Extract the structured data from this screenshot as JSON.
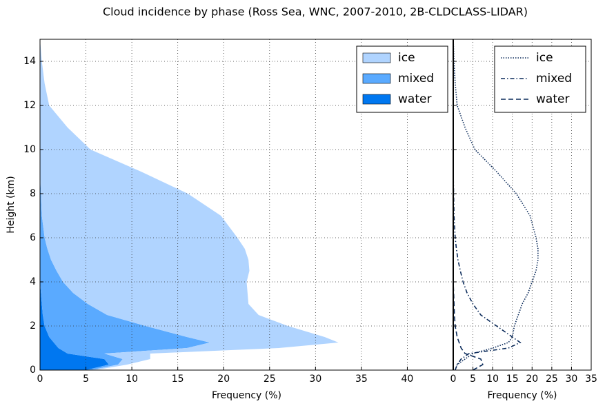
{
  "title": "Cloud incidence by phase (Ross Sea, WNC, 2007-2010, 2B-CLDCLASS-LIDAR)",
  "chart_data": [
    {
      "type": "stacked-area-horizontal",
      "ylabel": "Height (km)",
      "xlabel": "Frequency (%)",
      "xlim": [
        0,
        45
      ],
      "xticks": [
        0,
        5,
        10,
        15,
        20,
        25,
        30,
        35,
        40
      ],
      "ylim": [
        0,
        15
      ],
      "yticks": [
        0,
        2,
        4,
        6,
        8,
        10,
        12,
        14
      ],
      "grid": true,
      "legend": "upper right",
      "y": [
        0,
        0.25,
        0.5,
        0.75,
        1,
        1.25,
        1.5,
        2,
        2.5,
        3,
        3.5,
        4,
        4.5,
        5,
        5.5,
        6,
        7,
        8,
        9,
        10,
        11,
        12,
        13,
        14,
        15
      ],
      "series": [
        {
          "name": "ice",
          "color": "#b0d4ff",
          "values": [
            0.5,
            1,
            3,
            5,
            10,
            14,
            15,
            15.5,
            16.5,
            17.5,
            19,
            20,
            21,
            21.5,
            21.5,
            21,
            19.5,
            16,
            11,
            5.5,
            3,
            1,
            0.5,
            0.2,
            0
          ]
        },
        {
          "name": "mixed",
          "color": "#5aaaff",
          "values": [
            0.5,
            1,
            2,
            4,
            14,
            17,
            15,
            11,
            7,
            5,
            3.5,
            2.5,
            1.8,
            1.2,
            0.8,
            0.5,
            0.2,
            0.1,
            0,
            0,
            0,
            0,
            0,
            0,
            0
          ]
        },
        {
          "name": "water",
          "color": "#0077f0",
          "values": [
            5,
            7.5,
            7,
            3,
            2,
            1.5,
            1,
            0.5,
            0.3,
            0.2,
            0.1,
            0,
            0,
            0,
            0,
            0,
            0,
            0,
            0,
            0,
            0,
            0,
            0,
            0,
            0
          ]
        }
      ]
    },
    {
      "type": "line-horizontal",
      "xlabel": "Frequency (%)",
      "xlim": [
        0,
        35
      ],
      "xticks": [
        0,
        5,
        10,
        15,
        20,
        25,
        30,
        35
      ],
      "ylim": [
        0,
        15
      ],
      "yticks": [
        0,
        2,
        4,
        6,
        8,
        10,
        12,
        14
      ],
      "grid": true,
      "legend": "upper right",
      "y": [
        0,
        0.25,
        0.5,
        0.75,
        1,
        1.25,
        1.5,
        2,
        2.5,
        3,
        3.5,
        4,
        4.5,
        5,
        5.5,
        6,
        7,
        8,
        9,
        10,
        11,
        12,
        13,
        14,
        15
      ],
      "series": [
        {
          "name": "ice",
          "color": "#0a2a5a",
          "dash": "dotted",
          "values": [
            0.5,
            1,
            3,
            5,
            10,
            14,
            15,
            15.5,
            16.5,
            17.5,
            19,
            20,
            21,
            21.5,
            21.5,
            21,
            19.5,
            16,
            11,
            5.5,
            3,
            1,
            0.5,
            0.2,
            0
          ]
        },
        {
          "name": "mixed",
          "color": "#0a2a5a",
          "dash": "dashdot",
          "values": [
            0.5,
            1,
            2,
            4,
            14,
            17,
            15,
            11,
            7,
            5,
            3.5,
            2.5,
            1.8,
            1.2,
            0.8,
            0.5,
            0.2,
            0.1,
            0,
            0,
            0,
            0,
            0,
            0,
            0
          ]
        },
        {
          "name": "water",
          "color": "#0a2a5a",
          "dash": "dashed",
          "values": [
            5,
            7.5,
            7,
            3,
            2,
            1.5,
            1,
            0.5,
            0.3,
            0.2,
            0.1,
            0,
            0,
            0,
            0,
            0,
            0,
            0,
            0,
            0,
            0,
            0,
            0,
            0,
            0
          ]
        }
      ]
    }
  ]
}
